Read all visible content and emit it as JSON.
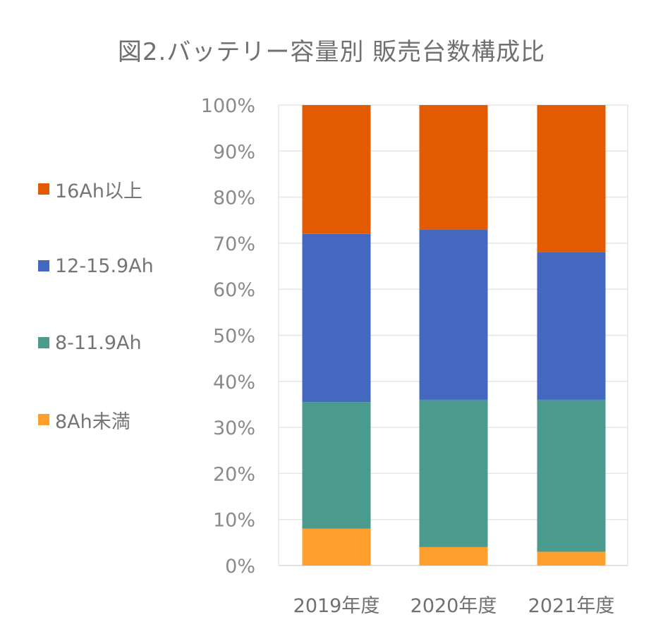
{
  "chart_data": {
    "type": "bar",
    "stacked": true,
    "title": "図2.バッテリー容量別 販売台数構成比",
    "xlabel": "",
    "ylabel": "",
    "categories": [
      "2019年度",
      "2020年度",
      "2021年度"
    ],
    "ylim": [
      0,
      100
    ],
    "y_ticks": [
      "0%",
      "10%",
      "20%",
      "30%",
      "40%",
      "50%",
      "60%",
      "70%",
      "80%",
      "90%",
      "100%"
    ],
    "grid": true,
    "legend_placement": "left",
    "series": [
      {
        "name": "8Ah未満",
        "color": "#FFA02E",
        "values": [
          8,
          4,
          3
        ]
      },
      {
        "name": "8-11.9Ah",
        "color": "#4A9A8E",
        "values": [
          27.5,
          32,
          33
        ]
      },
      {
        "name": "12-15.9Ah",
        "color": "#4468C0",
        "values": [
          36.5,
          37,
          32
        ]
      },
      {
        "name": "16Ah以上",
        "color": "#E35B00",
        "values": [
          28,
          27,
          32
        ]
      }
    ]
  }
}
